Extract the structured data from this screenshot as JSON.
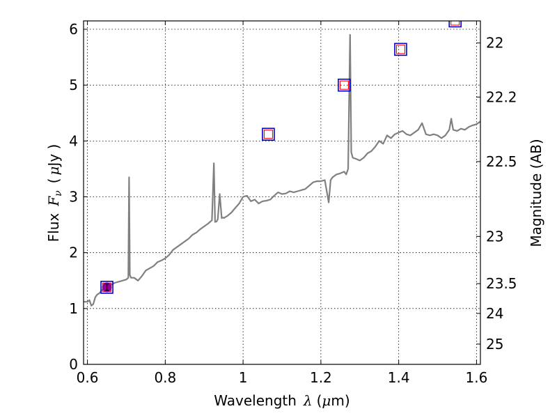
{
  "chart_data": {
    "type": "line",
    "xlabel": {
      "prefix": "Wavelength",
      "symbol": "λ",
      "unit_open": "(",
      "unit_mu": "μ",
      "unit_rest": "m)"
    },
    "ylabel": {
      "prefix": "Flux",
      "symbol": "F",
      "subscript": "ν",
      "unit_open": "(",
      "unit_mu": "μ",
      "unit_rest": "Jy )"
    },
    "y2label": "Magnitude (AB)",
    "xlim": [
      0.59,
      1.61
    ],
    "ylim": [
      0,
      6.15
    ],
    "xticks": [
      "0.6",
      "0.8",
      "1",
      "1.2",
      "1.4",
      "1.6"
    ],
    "xtick_values": [
      0.6,
      0.8,
      1.0,
      1.2,
      1.4,
      1.6
    ],
    "yticks": [
      "0",
      "1",
      "2",
      "3",
      "4",
      "5",
      "6"
    ],
    "ytick_values": [
      0,
      1,
      2,
      3,
      4,
      5,
      6
    ],
    "y2ticks": [
      {
        "label": "22",
        "value": 22
      },
      {
        "label": "22.2",
        "value": 22.2
      },
      {
        "label": "22.5",
        "value": 22.5
      },
      {
        "label": "23",
        "value": 23
      },
      {
        "label": "23.5",
        "value": 23.5
      },
      {
        "label": "24",
        "value": 24
      },
      {
        "label": "25",
        "value": 25
      }
    ],
    "grid": true,
    "colors": {
      "spectrum": "#808080",
      "model_marker": "#ff0000",
      "obs_marker": "#0000cc",
      "measurement": "#990099"
    },
    "spectrum": {
      "x": [
        0.59,
        0.6,
        0.605,
        0.61,
        0.615,
        0.62,
        0.625,
        0.63,
        0.64,
        0.65,
        0.66,
        0.67,
        0.68,
        0.69,
        0.7,
        0.705,
        0.707,
        0.709,
        0.712,
        0.72,
        0.73,
        0.74,
        0.75,
        0.76,
        0.77,
        0.78,
        0.79,
        0.8,
        0.81,
        0.82,
        0.83,
        0.84,
        0.85,
        0.86,
        0.87,
        0.88,
        0.89,
        0.9,
        0.91,
        0.92,
        0.925,
        0.928,
        0.932,
        0.935,
        0.94,
        0.945,
        0.948,
        0.951,
        0.955,
        0.96,
        0.97,
        0.98,
        0.99,
        1.0,
        1.01,
        1.02,
        1.03,
        1.04,
        1.05,
        1.06,
        1.07,
        1.08,
        1.09,
        1.1,
        1.11,
        1.12,
        1.13,
        1.14,
        1.15,
        1.16,
        1.17,
        1.18,
        1.19,
        1.2,
        1.21,
        1.22,
        1.225,
        1.23,
        1.24,
        1.25,
        1.26,
        1.265,
        1.27,
        1.275,
        1.278,
        1.282,
        1.29,
        1.3,
        1.31,
        1.32,
        1.33,
        1.34,
        1.35,
        1.36,
        1.37,
        1.38,
        1.39,
        1.4,
        1.41,
        1.42,
        1.43,
        1.44,
        1.45,
        1.46,
        1.47,
        1.48,
        1.49,
        1.5,
        1.51,
        1.52,
        1.53,
        1.535,
        1.54,
        1.55,
        1.56,
        1.57,
        1.58,
        1.59,
        1.6,
        1.61
      ],
      "y": [
        1.12,
        1.12,
        1.15,
        1.05,
        1.08,
        1.2,
        1.25,
        1.27,
        1.35,
        1.38,
        1.42,
        1.46,
        1.48,
        1.5,
        1.52,
        1.55,
        3.35,
        1.6,
        1.55,
        1.55,
        1.5,
        1.58,
        1.68,
        1.72,
        1.76,
        1.83,
        1.86,
        1.9,
        1.96,
        2.05,
        2.1,
        2.15,
        2.2,
        2.25,
        2.32,
        2.36,
        2.42,
        2.47,
        2.52,
        2.58,
        3.6,
        2.55,
        2.56,
        2.6,
        3.05,
        2.62,
        2.63,
        2.62,
        2.64,
        2.66,
        2.72,
        2.8,
        2.88,
        3.0,
        3.02,
        2.92,
        2.95,
        2.88,
        2.92,
        2.93,
        2.95,
        3.02,
        3.08,
        3.05,
        3.06,
        3.1,
        3.08,
        3.1,
        3.12,
        3.14,
        3.2,
        3.26,
        3.28,
        3.28,
        3.3,
        2.9,
        3.3,
        3.35,
        3.4,
        3.42,
        3.45,
        3.4,
        3.5,
        5.9,
        3.8,
        3.7,
        3.68,
        3.65,
        3.7,
        3.78,
        3.82,
        3.9,
        4.0,
        3.95,
        4.1,
        4.05,
        4.12,
        4.15,
        4.18,
        4.12,
        4.1,
        4.15,
        4.2,
        4.32,
        4.12,
        4.1,
        4.12,
        4.1,
        4.05,
        4.1,
        4.2,
        4.4,
        4.2,
        4.18,
        4.22,
        4.2,
        4.25,
        4.28,
        4.3,
        4.35
      ]
    },
    "model_points": [
      {
        "x": 0.65,
        "y": 1.38
      },
      {
        "x": 1.065,
        "y": 4.12
      },
      {
        "x": 1.26,
        "y": 5.0
      },
      {
        "x": 1.405,
        "y": 5.64
      },
      {
        "x": 1.545,
        "y": 6.15
      }
    ],
    "measurement": {
      "x": 0.65,
      "y": 1.38,
      "yerr": 0.06
    }
  }
}
